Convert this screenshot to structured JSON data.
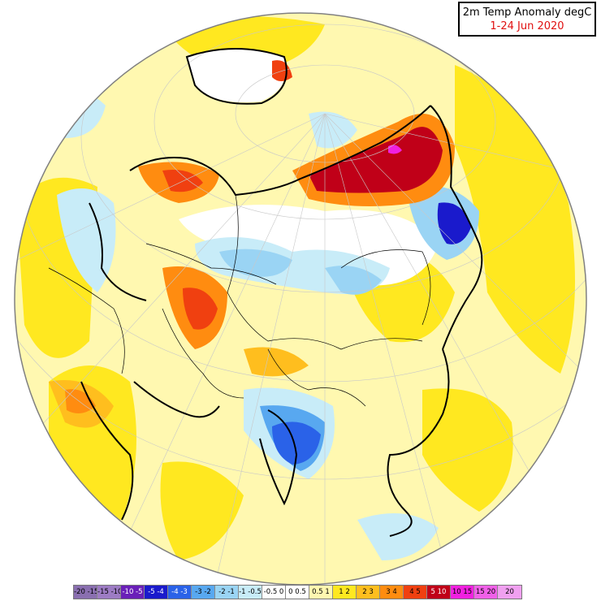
{
  "title": {
    "line1": "2m Temp Anomaly degC",
    "line2": "1-24 Jun 2020"
  },
  "colors": {
    "title_date": "#e01010",
    "ocean_background": "#fff8b0",
    "globe_outline": "#808080"
  },
  "legend": [
    {
      "label": "-20 -15",
      "color": "#8a6fb0"
    },
    {
      "label": "-15 -10",
      "color": "#9d7cc4"
    },
    {
      "label": "-10 -5",
      "color": "#6a1fb8"
    },
    {
      "label": "-5 -4",
      "color": "#1a1acc"
    },
    {
      "label": "-4 -3",
      "color": "#2a62e8"
    },
    {
      "label": "-3 -2",
      "color": "#58a8f0"
    },
    {
      "label": "-2 -1",
      "color": "#9ad4f4"
    },
    {
      "label": "-1 -0.5",
      "color": "#c8ecf8"
    },
    {
      "label": "-0.5 0",
      "color": "#ffffff"
    },
    {
      "label": "0 0.5",
      "color": "#ffffff"
    },
    {
      "label": "0.5 1",
      "color": "#fff8b0"
    },
    {
      "label": "1 2",
      "color": "#ffe820"
    },
    {
      "label": "2 3",
      "color": "#ffbe1e"
    },
    {
      "label": "3 4",
      "color": "#ff8c10"
    },
    {
      "label": "4 5",
      "color": "#f04010"
    },
    {
      "label": "5 10",
      "color": "#c00018"
    },
    {
      "label": "10 15",
      "color": "#f020e0"
    },
    {
      "label": "15 20",
      "color": "#f060e8"
    },
    {
      "label": "20",
      "color": "#f0a0f0"
    }
  ]
}
